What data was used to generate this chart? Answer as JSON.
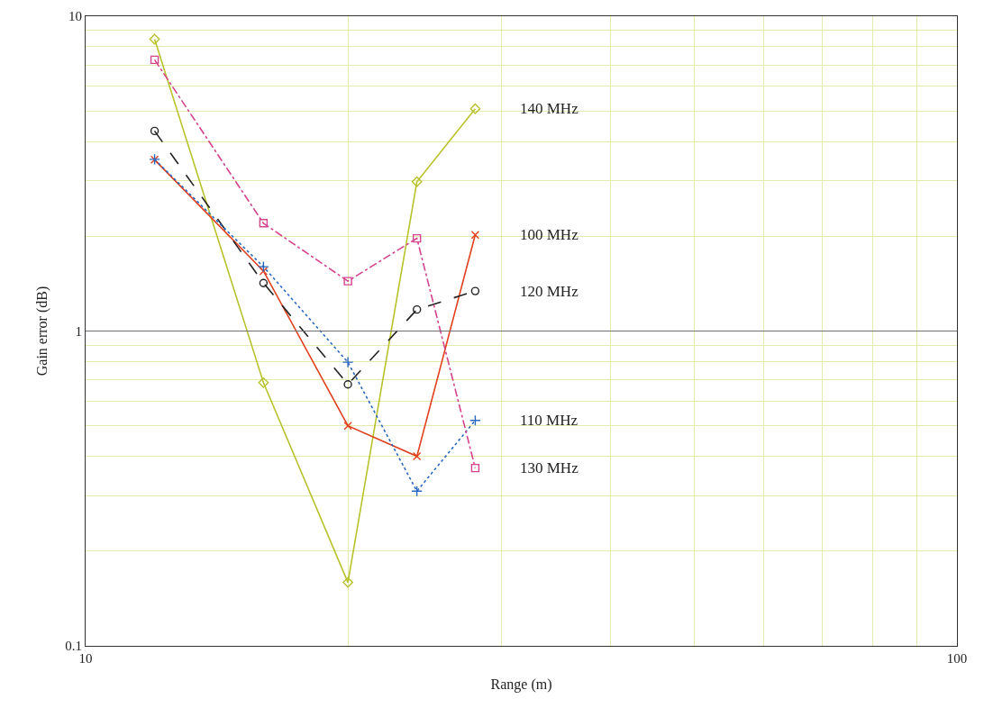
{
  "chart_data": {
    "type": "line",
    "xlabel": "Range (m)",
    "ylabel": "Gain error (dB)",
    "x": [
      12,
      16,
      20,
      24,
      28
    ],
    "log": "xy",
    "xlim": [
      10,
      100
    ],
    "xticks": [
      10,
      {
        "value": 20,
        "label": null
      },
      {
        "value": 30,
        "label": null
      },
      {
        "value": 40,
        "label": null
      },
      {
        "value": 50,
        "label": null
      },
      {
        "value": 60,
        "label": null
      },
      {
        "value": 70,
        "label": null
      },
      {
        "value": 80,
        "label": null
      },
      {
        "value": 90,
        "label": null
      },
      100
    ],
    "ylim": [
      0.1,
      10
    ],
    "yticks": [
      0.1,
      {
        "value": 0.2,
        "label": null
      },
      {
        "value": 0.3,
        "label": null
      },
      {
        "value": 0.4,
        "label": null
      },
      {
        "value": 0.5,
        "label": null
      },
      {
        "value": 0.6,
        "label": null
      },
      {
        "value": 0.7,
        "label": null
      },
      {
        "value": 0.8,
        "label": null
      },
      {
        "value": 0.9,
        "label": null
      },
      1,
      {
        "value": 2,
        "label": null
      },
      {
        "value": 3,
        "label": null
      },
      {
        "value": 4,
        "label": null
      },
      {
        "value": 5,
        "label": null
      },
      {
        "value": 6,
        "label": null
      },
      {
        "value": 7,
        "label": null
      },
      {
        "value": 8,
        "label": null
      },
      {
        "value": 9,
        "label": null
      },
      10
    ],
    "grid": true,
    "legend": false,
    "series": [
      {
        "name": "140 MHz",
        "color": "#b8c22c",
        "values": [
          8.45,
          0.686,
          0.159,
          2.98,
          5.08
        ],
        "marker": "diamond",
        "line_style": "solid"
      },
      {
        "name": "100 MHz",
        "color": "#e0401e",
        "values": [
          3.5,
          1.55,
          0.5,
          0.4,
          2.02
        ],
        "marker": "x",
        "line_style": "solid"
      },
      {
        "name": "120 MHz",
        "color": "#222222",
        "values": [
          4.32,
          1.42,
          0.677,
          1.17,
          1.34
        ],
        "marker": "circle",
        "line_style": "dashed"
      },
      {
        "name": "110 MHz",
        "color": "#2a68c0",
        "values": [
          3.51,
          1.6,
          0.796,
          0.31,
          0.52
        ],
        "marker": "cross",
        "line_style": "dotted"
      },
      {
        "name": "130 MHz",
        "color": "#d4448e",
        "values": [
          7.27,
          2.2,
          1.44,
          1.97,
          0.367
        ],
        "marker": "square",
        "line_style": "dashdot"
      }
    ],
    "ref_lines": [
      {
        "axis": "y",
        "value": 1,
        "color": "#707070"
      }
    ]
  }
}
